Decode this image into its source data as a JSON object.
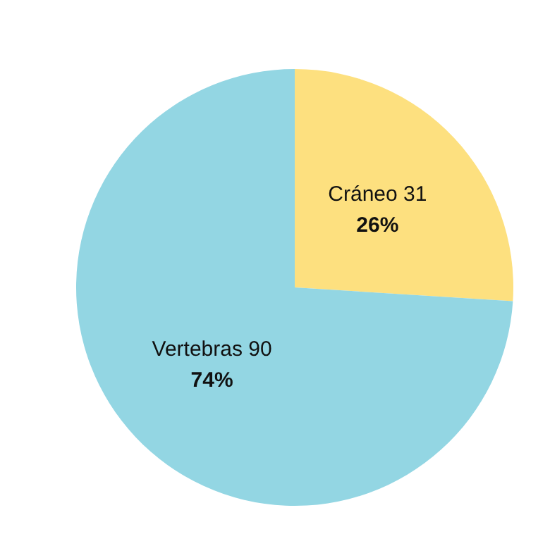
{
  "chart_data": {
    "type": "pie",
    "categories": [
      "Cráneo 31",
      "Vertebras 90"
    ],
    "values": [
      26,
      74
    ],
    "colors": [
      "#fde07f",
      "#93d6e3"
    ],
    "value_labels": [
      "26%",
      "74%"
    ]
  }
}
